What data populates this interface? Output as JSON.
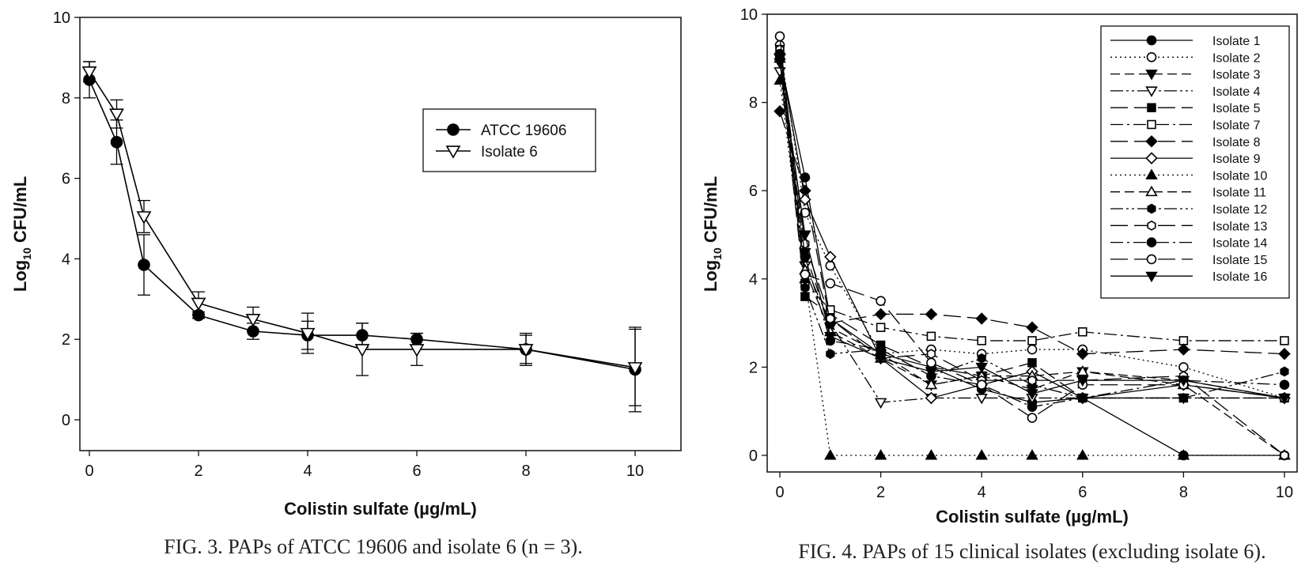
{
  "chart_data": [
    {
      "type": "line",
      "caption": "FIG. 3. PAPs of ATCC 19606 and isolate 6 (n = 3).",
      "xlabel": "Colistin sulfate (µg/mL)",
      "ylabel": "Log10 CFU/mL",
      "xlim": [
        0,
        10
      ],
      "ylim": [
        0,
        10
      ],
      "xticks": [
        0,
        2,
        4,
        6,
        8,
        10
      ],
      "yticks": [
        0,
        2,
        4,
        6,
        8,
        10
      ],
      "grid": false,
      "legend_position": "top-right",
      "series": [
        {
          "name": "ATCC 19606",
          "marker": "circle-filled",
          "x": [
            0,
            0.5,
            1,
            2,
            3,
            4,
            5,
            6,
            8,
            10
          ],
          "y": [
            8.45,
            6.9,
            3.85,
            2.6,
            2.2,
            2.1,
            2.1,
            2.0,
            1.75,
            1.25
          ],
          "err": [
            0.45,
            0.55,
            0.75,
            0.08,
            0.2,
            0.35,
            0.3,
            0.15,
            0.35,
            1.05
          ]
        },
        {
          "name": "Isolate 6",
          "marker": "triangle-down-open",
          "x": [
            0,
            0.5,
            1,
            2,
            3,
            4,
            5,
            6,
            8,
            10
          ],
          "y": [
            8.65,
            7.6,
            5.05,
            2.9,
            2.5,
            2.15,
            1.75,
            1.75,
            1.75,
            1.3
          ],
          "err": [
            0.25,
            0.35,
            0.4,
            0.28,
            0.3,
            0.5,
            0.65,
            0.4,
            0.4,
            0.95
          ]
        }
      ]
    },
    {
      "type": "line",
      "caption": "FIG. 4. PAPs of 15 clinical isolates (excluding isolate 6).",
      "xlabel": "Colistin sulfate (µg/mL)",
      "ylabel": "Log10 CFU/mL",
      "xlim": [
        0,
        10
      ],
      "ylim": [
        0,
        10
      ],
      "xticks": [
        0,
        2,
        4,
        6,
        8,
        10
      ],
      "yticks": [
        0,
        2,
        4,
        6,
        8,
        10
      ],
      "grid": false,
      "legend_position": "top-right",
      "x": [
        0,
        0.5,
        1,
        2,
        3,
        4,
        5,
        6,
        8,
        10
      ],
      "series": [
        {
          "name": "Isolate 1",
          "marker": "circle-filled",
          "dash": "solid",
          "y": [
            9.0,
            6.3,
            3.1,
            2.3,
            2.0,
            1.5,
            1.2,
            1.3,
            0,
            0
          ]
        },
        {
          "name": "Isolate 2",
          "marker": "circle-open",
          "dash": "dotted",
          "y": [
            9.3,
            5.5,
            4.3,
            2.3,
            2.4,
            2.3,
            2.4,
            2.4,
            2.0,
            1.3
          ]
        },
        {
          "name": "Isolate 3",
          "marker": "triangle-down-filled",
          "dash": "dashed",
          "y": [
            9.0,
            4.6,
            2.9,
            2.3,
            1.6,
            1.8,
            1.5,
            1.9,
            1.7,
            1.3
          ]
        },
        {
          "name": "Isolate 4",
          "marker": "triangle-down-open",
          "dash": "dashdotdot",
          "y": [
            8.7,
            4.3,
            3.0,
            1.2,
            1.3,
            1.3,
            1.3,
            1.3,
            1.3,
            1.3
          ]
        },
        {
          "name": "Isolate 5",
          "marker": "square-filled",
          "dash": "longdash",
          "y": [
            9.0,
            3.6,
            3.2,
            2.5,
            2.0,
            1.8,
            2.1,
            1.3,
            1.3,
            1.3
          ]
        },
        {
          "name": "Isolate 7",
          "marker": "square-open",
          "dash": "dashdot",
          "y": [
            9.2,
            3.9,
            3.3,
            2.9,
            2.7,
            2.6,
            2.6,
            2.8,
            2.6,
            2.6
          ]
        },
        {
          "name": "Isolate 8",
          "marker": "diamond-filled",
          "dash": "longdash",
          "y": [
            7.8,
            6.0,
            3.0,
            3.2,
            3.2,
            3.1,
            2.9,
            2.3,
            2.4,
            2.3
          ]
        },
        {
          "name": "Isolate 9",
          "marker": "diamond-open",
          "dash": "solid",
          "y": [
            9.1,
            5.8,
            4.5,
            2.2,
            1.3,
            1.6,
            1.9,
            1.3,
            1.6,
            1.3
          ]
        },
        {
          "name": "Isolate 10",
          "marker": "triangle-up-filled",
          "dash": "dotted",
          "y": [
            8.5,
            4.0,
            0,
            0,
            0,
            0,
            0,
            0,
            0,
            0
          ]
        },
        {
          "name": "Isolate 11",
          "marker": "triangle-up-open",
          "dash": "dashed",
          "y": [
            9.0,
            4.2,
            2.8,
            2.2,
            1.6,
            1.8,
            1.8,
            1.9,
            1.6,
            0
          ]
        },
        {
          "name": "Isolate 12",
          "marker": "hexagon-filled",
          "dash": "dashdotdot",
          "y": [
            9.0,
            3.8,
            2.3,
            2.4,
            1.8,
            2.2,
            1.6,
            1.3,
            1.3,
            1.9
          ]
        },
        {
          "name": "Isolate 13",
          "marker": "hexagon-open",
          "dash": "longdash",
          "y": [
            9.2,
            4.8,
            3.1,
            2.2,
            2.3,
            1.7,
            1.7,
            1.7,
            1.8,
            0
          ]
        },
        {
          "name": "Isolate 14",
          "marker": "circle-filled",
          "dash": "dashdot",
          "y": [
            9.1,
            4.5,
            2.6,
            2.4,
            1.8,
            1.6,
            1.1,
            1.3,
            1.7,
            1.6
          ]
        },
        {
          "name": "Isolate 15",
          "marker": "circle-open",
          "dash": "longdash",
          "y": [
            9.5,
            4.1,
            3.9,
            3.5,
            2.1,
            1.6,
            0.85,
            1.6,
            1.6,
            1.3
          ]
        },
        {
          "name": "Isolate 16",
          "marker": "triangle-down-filled",
          "dash": "solid",
          "y": [
            8.9,
            5.0,
            2.7,
            2.2,
            1.9,
            2.0,
            1.4,
            1.7,
            1.7,
            1.3
          ]
        }
      ]
    }
  ]
}
